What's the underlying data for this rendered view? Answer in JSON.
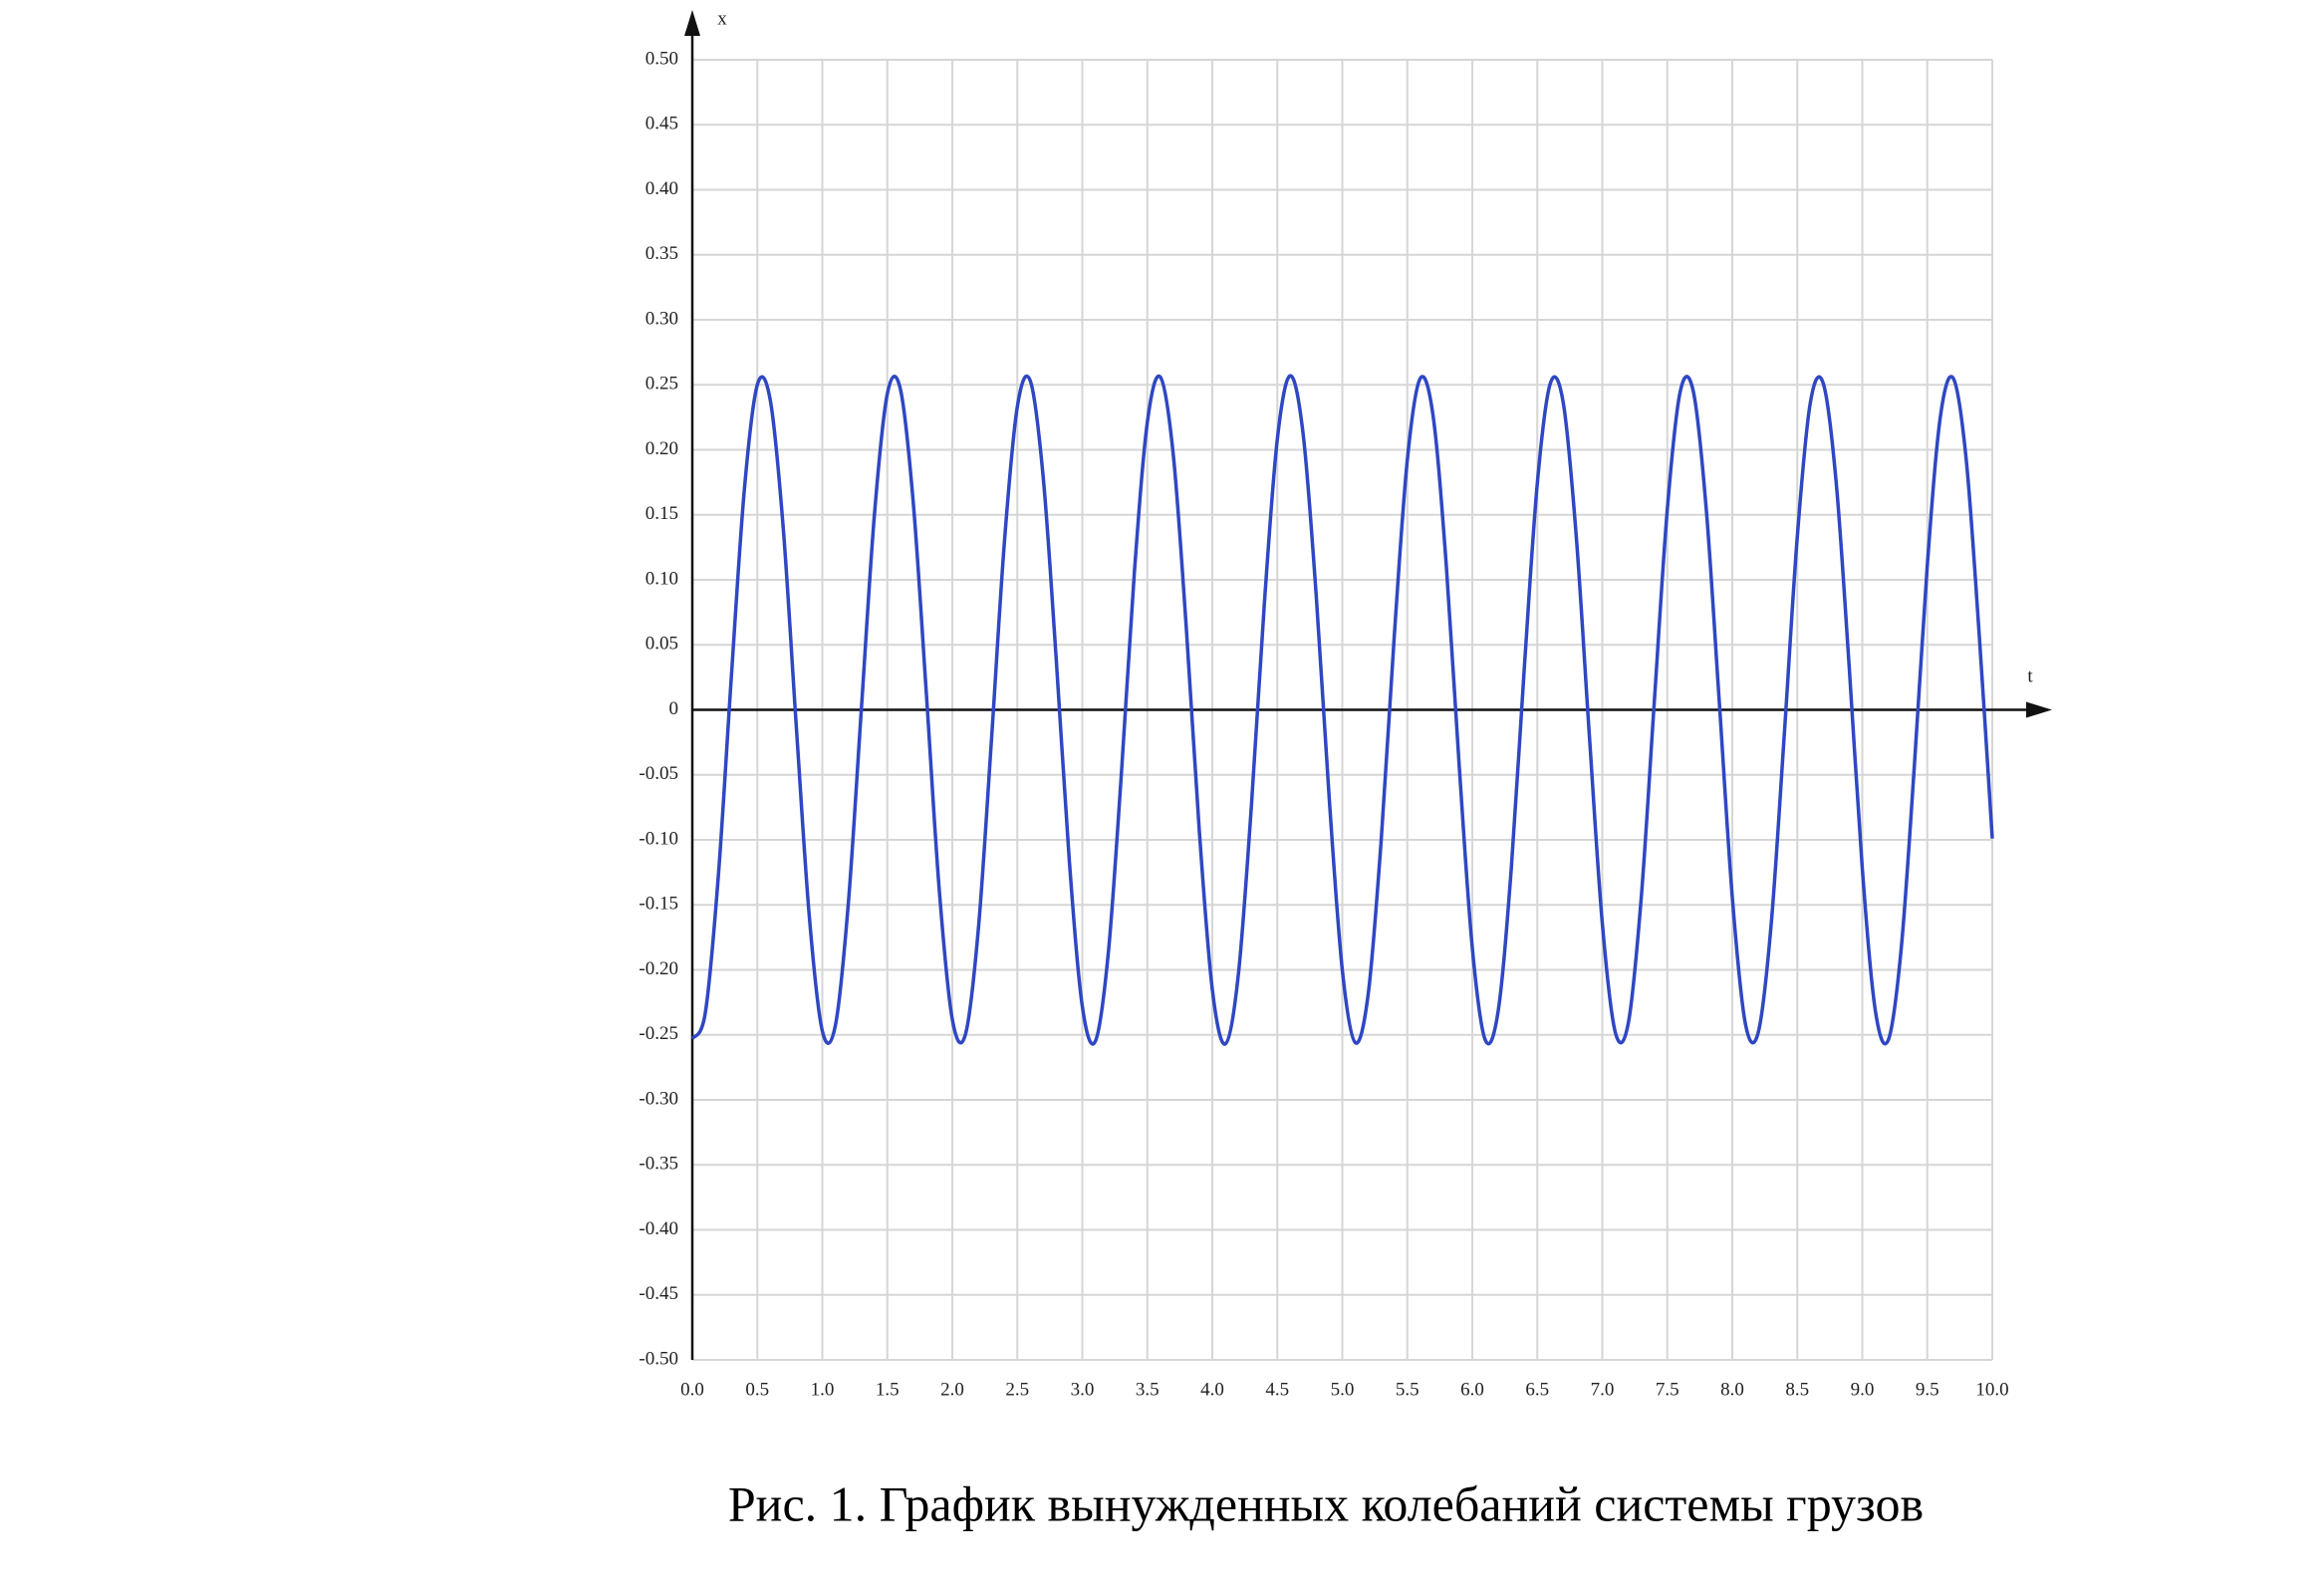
{
  "chart_data": {
    "type": "line",
    "x_label": "t",
    "y_label": "x",
    "caption": "Рис. 1. График вынужденных колебаний системы грузов",
    "color": "#2f47c2",
    "grid": true,
    "xlim": [
      0,
      10
    ],
    "ylim": [
      -0.5,
      0.5
    ],
    "xticks": [
      {
        "value": 0,
        "label": "0.0"
      },
      0.5,
      {
        "value": 1,
        "label": "1.0"
      },
      1.5,
      {
        "value": 2,
        "label": "2.0"
      },
      2.5,
      {
        "value": 3,
        "label": "3.0"
      },
      3.5,
      {
        "value": 4,
        "label": "4.0"
      },
      4.5,
      {
        "value": 5,
        "label": "5.0"
      },
      5.5,
      {
        "value": 6,
        "label": "6.0"
      },
      6.5,
      {
        "value": 7,
        "label": "7.0"
      },
      7.5,
      {
        "value": 8,
        "label": "8.0"
      },
      8.5,
      {
        "value": 9,
        "label": "9.0"
      },
      9.5,
      {
        "value": 10,
        "label": "10.0"
      }
    ],
    "yticks": [
      {
        "value": 0.5,
        "label": "0.50"
      },
      0.45,
      {
        "value": 0.4,
        "label": "0.40"
      },
      0.35,
      {
        "value": 0.3,
        "label": "0.30"
      },
      0.25,
      {
        "value": 0.2,
        "label": "0.20"
      },
      0.15,
      {
        "value": 0.1,
        "label": "0.10"
      },
      0.05,
      0,
      -0.05,
      {
        "value": -0.1,
        "label": "-0.10"
      },
      -0.15,
      {
        "value": -0.2,
        "label": "-0.20"
      },
      -0.25,
      {
        "value": -0.3,
        "label": "-0.30"
      },
      -0.35,
      {
        "value": -0.4,
        "label": "-0.40"
      },
      -0.45,
      {
        "value": -0.5,
        "label": "-0.50"
      }
    ],
    "x": [
      0,
      0.1,
      0.2,
      0.3,
      0.4,
      0.5,
      0.6,
      0.7,
      0.8,
      0.9,
      1.0,
      1.1,
      1.2,
      1.3,
      1.4,
      1.5,
      1.6,
      1.7,
      1.8,
      1.9,
      2.0,
      2.1,
      2.2,
      2.3,
      2.4,
      2.5,
      2.6,
      2.7,
      2.8,
      2.9,
      3.0,
      3.1,
      3.2,
      3.3,
      3.4,
      3.5,
      3.6,
      3.7,
      3.8,
      3.9,
      4.0,
      4.1,
      4.2,
      4.3,
      4.4,
      4.5,
      4.6,
      4.7,
      4.8,
      4.9,
      5.0,
      5.1,
      5.2,
      5.3,
      5.4,
      5.5,
      5.6,
      5.7,
      5.8,
      5.9,
      6.0,
      6.1,
      6.2,
      6.3,
      6.4,
      6.5,
      6.6,
      6.7,
      6.8,
      6.9,
      7.0,
      7.1,
      7.2,
      7.3,
      7.4,
      7.5,
      7.6,
      7.7,
      7.8,
      7.9,
      8.0,
      8.1,
      8.2,
      8.3,
      8.4,
      8.5,
      8.6,
      8.7,
      8.8,
      8.9,
      9.0,
      9.1,
      9.2,
      9.3,
      9.4,
      9.5,
      9.6,
      9.7,
      9.8,
      9.9,
      10.0
    ],
    "values": [
      -0.253,
      -0.233,
      -0.128,
      0.025,
      0.169,
      0.25,
      0.238,
      0.139,
      -0.013,
      -0.159,
      -0.247,
      -0.243,
      -0.149,
      0,
      0.149,
      0.243,
      0.247,
      0.159,
      0.013,
      -0.139,
      -0.238,
      -0.25,
      -0.169,
      -0.025,
      0.128,
      0.233,
      0.253,
      0.178,
      0.038,
      -0.116,
      -0.228,
      -0.255,
      -0.187,
      -0.05,
      0.105,
      0.221,
      0.256,
      0.196,
      0.063,
      -0.093,
      -0.215,
      -0.257,
      -0.204,
      -0.075,
      0.081,
      0.208,
      0.257,
      0.211,
      0.087,
      -0.069,
      -0.2,
      -0.256,
      -0.218,
      -0.099,
      0.057,
      0.192,
      0.255,
      0.225,
      0.111,
      -0.044,
      -0.183,
      -0.254,
      -0.231,
      -0.122,
      0.032,
      0.174,
      0.251,
      0.236,
      0.133,
      -0.019,
      -0.164,
      -0.248,
      -0.241,
      -0.144,
      0.006,
      0.154,
      0.245,
      0.245,
      0.154,
      0.006,
      -0.144,
      -0.241,
      -0.248,
      -0.164,
      -0.019,
      0.133,
      0.236,
      0.251,
      0.174,
      0.032,
      -0.122,
      -0.231,
      -0.254,
      -0.183,
      -0.044,
      0.111,
      0.225,
      0.255,
      0.192,
      0.057,
      -0.099
    ]
  }
}
